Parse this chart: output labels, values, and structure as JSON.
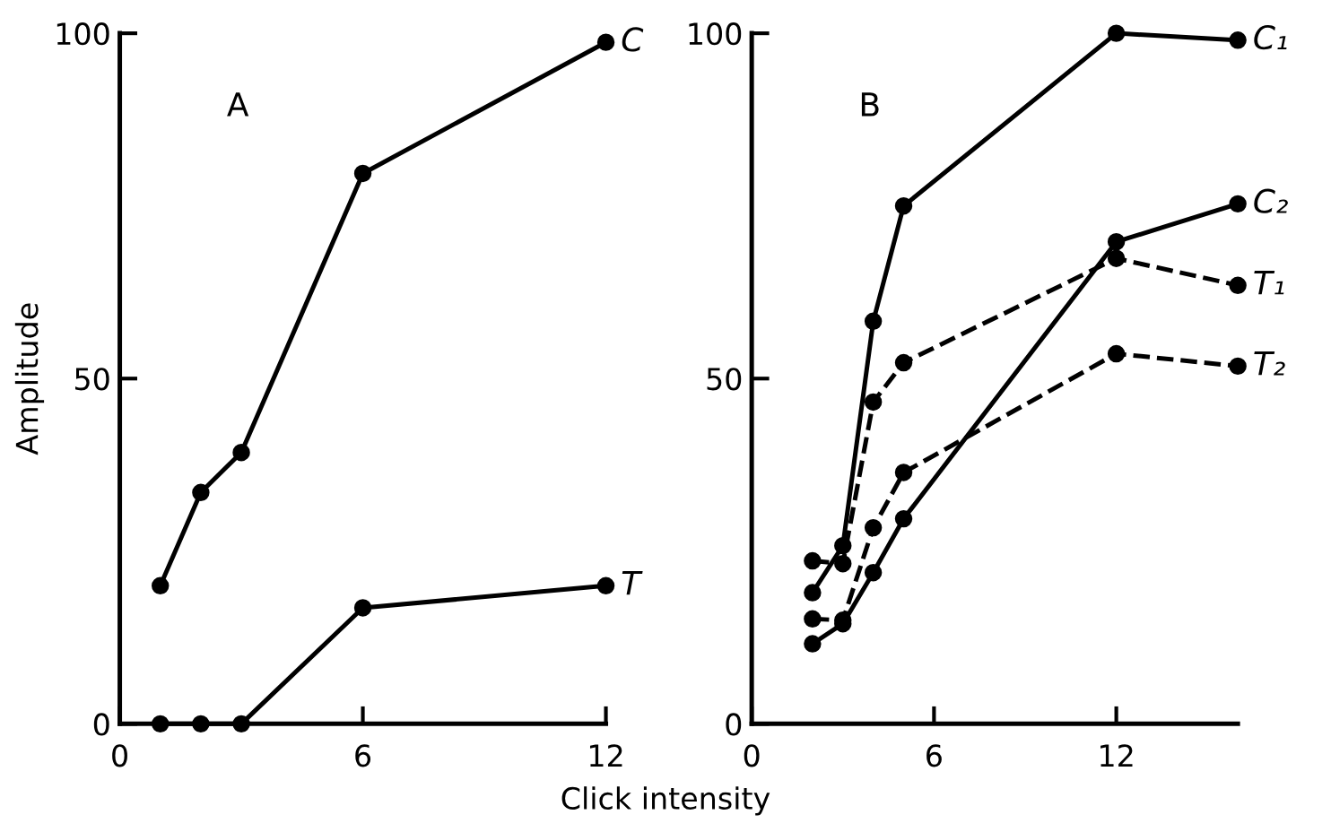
{
  "chart_data": [
    {
      "type": "line",
      "xlabel": "Click intensity",
      "ylabel": "Amplitude",
      "annotations": [
        "A"
      ],
      "xlim": [
        0,
        12
      ],
      "ylim": [
        0,
        100
      ],
      "xticks": [
        0,
        6,
        12
      ],
      "yticks": [
        0,
        50,
        100
      ],
      "grid": false,
      "legend": false,
      "marker": "circle",
      "series": [
        {
          "name": "C",
          "color": "#000000",
          "line_style": "solid",
          "x": [
            1,
            2,
            3,
            6,
            12
          ],
          "values": [
            20,
            33.5,
            39.3,
            79.7,
            98.7
          ]
        },
        {
          "name": "T",
          "color": "#000000",
          "line_style": "solid",
          "x": [
            1,
            2,
            3,
            6,
            12
          ],
          "values": [
            0,
            0,
            0,
            16.8,
            20
          ]
        }
      ]
    },
    {
      "type": "line",
      "annotations": [
        "B"
      ],
      "xlim": [
        0,
        16
      ],
      "ylim": [
        0,
        100
      ],
      "xticks": [
        0,
        6,
        12
      ],
      "yticks": [
        0,
        50,
        100
      ],
      "grid": false,
      "legend": false,
      "marker": "circle",
      "series": [
        {
          "name": "C₁",
          "color": "#000000",
          "line_style": "solid",
          "x": [
            2,
            3,
            4,
            5,
            12,
            16
          ],
          "values": [
            19,
            25.8,
            58.3,
            75,
            100,
            99
          ]
        },
        {
          "name": "C₂",
          "color": "#000000",
          "line_style": "solid",
          "x": [
            2,
            3,
            4,
            5,
            12,
            16
          ],
          "values": [
            11.6,
            14.5,
            21.9,
            29.7,
            69.8,
            75.3
          ]
        },
        {
          "name": "T₁",
          "color": "#000000",
          "line_style": "dashed",
          "x": [
            2,
            3,
            4,
            5,
            12,
            16
          ],
          "values": [
            23.6,
            23.2,
            46.6,
            52.3,
            67.4,
            63.5
          ]
        },
        {
          "name": "T₂",
          "color": "#000000",
          "line_style": "dashed",
          "x": [
            2,
            3,
            4,
            5,
            12,
            16
          ],
          "values": [
            15.2,
            15,
            28.4,
            36.4,
            53.6,
            51.8
          ]
        }
      ]
    }
  ]
}
